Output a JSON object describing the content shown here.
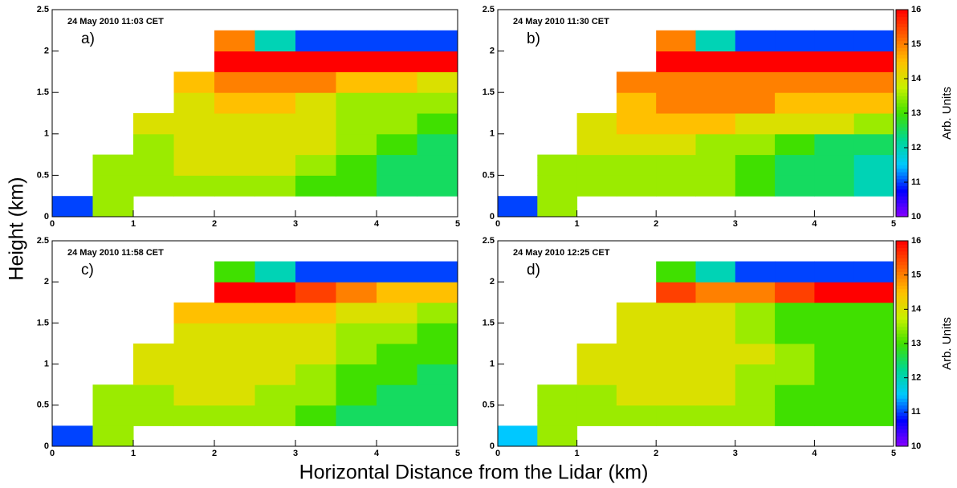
{
  "figure": {
    "ylabel": "Height (km)",
    "xlabel": "Horizontal Distance from the Lidar (km)",
    "colormap": [
      "#8a00ff",
      "#0000ff",
      "#00c8ff",
      "#00d890",
      "#40e000",
      "#c8f000",
      "#ffc000",
      "#ff6000",
      "#ff0000"
    ]
  },
  "chart_data": [
    {
      "type": "heatmap",
      "title": "24 May 2010 11:03 CET",
      "annotation": "a)",
      "xlim": [
        0,
        5
      ],
      "ylim": [
        0,
        2.5
      ],
      "xticks": [
        0,
        1,
        2,
        3,
        4,
        5
      ],
      "yticks": [
        0,
        0.5,
        1,
        1.5,
        2,
        2.5
      ],
      "zlim": [
        10,
        16
      ],
      "xbins": [
        0,
        0.5,
        1,
        1.5,
        2,
        2.5,
        3,
        3.5,
        4,
        4.5,
        5
      ],
      "ybins": [
        0,
        0.25,
        0.5,
        0.75,
        1,
        1.25,
        1.5,
        1.75,
        2,
        2.25,
        2.5
      ],
      "z": [
        [
          11,
          13.5,
          null,
          null,
          null,
          null,
          null,
          null,
          null,
          null
        ],
        [
          null,
          13.5,
          13.5,
          13.5,
          13.5,
          13.5,
          13,
          13,
          12.5,
          12.5
        ],
        [
          null,
          13.5,
          13.5,
          14,
          14,
          14,
          13.5,
          13,
          12.5,
          12.5
        ],
        [
          null,
          null,
          13.5,
          14,
          14,
          14,
          14,
          13.5,
          13,
          12.5
        ],
        [
          null,
          null,
          14,
          14,
          14,
          14,
          14,
          13.5,
          13.5,
          13
        ],
        [
          null,
          null,
          null,
          14,
          14.5,
          14.5,
          14,
          13.5,
          13.5,
          13.5
        ],
        [
          null,
          null,
          null,
          14.5,
          15,
          15,
          15,
          14.5,
          14.5,
          14
        ],
        [
          null,
          null,
          null,
          null,
          16,
          16,
          16,
          16,
          16,
          16
        ],
        [
          null,
          null,
          null,
          null,
          15,
          12,
          11,
          11,
          11,
          11
        ],
        [
          null,
          null,
          null,
          null,
          null,
          null,
          null,
          null,
          null,
          null
        ]
      ]
    },
    {
      "type": "heatmap",
      "title": "24 May 2010 11:30 CET",
      "annotation": "b)",
      "xlim": [
        0,
        5
      ],
      "ylim": [
        0,
        2.5
      ],
      "xticks": [
        0,
        1,
        2,
        3,
        4,
        5
      ],
      "yticks": [
        0,
        0.5,
        1,
        1.5,
        2,
        2.5
      ],
      "zlim": [
        10,
        16
      ],
      "colorbar": {
        "ticks": [
          10,
          11,
          12,
          13,
          14,
          15,
          16
        ],
        "label": "Arb. Units"
      },
      "xbins": [
        0,
        0.5,
        1,
        1.5,
        2,
        2.5,
        3,
        3.5,
        4,
        4.5,
        5
      ],
      "ybins": [
        0,
        0.25,
        0.5,
        0.75,
        1,
        1.25,
        1.5,
        1.75,
        2,
        2.25,
        2.5
      ],
      "z": [
        [
          11,
          13.5,
          null,
          null,
          null,
          null,
          null,
          null,
          null,
          null
        ],
        [
          null,
          13.5,
          13.5,
          13.5,
          13.5,
          13.5,
          13,
          12.5,
          12.5,
          12
        ],
        [
          null,
          13.5,
          13.5,
          13.5,
          13.5,
          13.5,
          13,
          12.5,
          12.5,
          12
        ],
        [
          null,
          null,
          14,
          14,
          14,
          13.5,
          13.5,
          13,
          12.5,
          12.5
        ],
        [
          null,
          null,
          14,
          14.5,
          14.5,
          14.5,
          14,
          14,
          14,
          13.5
        ],
        [
          null,
          null,
          null,
          14.5,
          15,
          15,
          15,
          14.5,
          14.5,
          14.5
        ],
        [
          null,
          null,
          null,
          15,
          15,
          15,
          15,
          15,
          15,
          15
        ],
        [
          null,
          null,
          null,
          null,
          16,
          16,
          16,
          16,
          16,
          16
        ],
        [
          null,
          null,
          null,
          null,
          15,
          12,
          11,
          11,
          11,
          11
        ],
        [
          null,
          null,
          null,
          null,
          null,
          null,
          null,
          null,
          null,
          null
        ]
      ]
    },
    {
      "type": "heatmap",
      "title": "24 May 2010 11:58 CET",
      "annotation": "c)",
      "xlim": [
        0,
        5
      ],
      "ylim": [
        0,
        2.5
      ],
      "xticks": [
        0,
        1,
        2,
        3,
        4,
        5
      ],
      "yticks": [
        0,
        0.5,
        1,
        1.5,
        2,
        2.5
      ],
      "zlim": [
        10,
        16
      ],
      "xbins": [
        0,
        0.5,
        1,
        1.5,
        2,
        2.5,
        3,
        3.5,
        4,
        4.5,
        5
      ],
      "ybins": [
        0,
        0.25,
        0.5,
        0.75,
        1,
        1.25,
        1.5,
        1.75,
        2,
        2.25,
        2.5
      ],
      "z": [
        [
          11,
          13.5,
          null,
          null,
          null,
          null,
          null,
          null,
          null,
          null
        ],
        [
          null,
          13.5,
          13.5,
          13.5,
          13.5,
          13.5,
          13,
          12.5,
          12.5,
          12.5
        ],
        [
          null,
          13.5,
          13.5,
          14,
          14,
          13.5,
          13.5,
          13,
          12.5,
          12.5
        ],
        [
          null,
          null,
          14,
          14,
          14,
          14,
          13.5,
          13,
          13,
          12.5
        ],
        [
          null,
          null,
          14,
          14,
          14,
          14,
          14,
          13.5,
          13,
          13
        ],
        [
          null,
          null,
          null,
          14,
          14,
          14,
          14,
          13.5,
          13.5,
          13
        ],
        [
          null,
          null,
          null,
          14.5,
          14.5,
          14.5,
          14.5,
          14,
          14,
          13.5
        ],
        [
          null,
          null,
          null,
          null,
          16,
          16,
          15.5,
          15,
          14.5,
          14.5
        ],
        [
          null,
          null,
          null,
          null,
          13,
          12,
          11,
          11,
          11,
          11
        ],
        [
          null,
          null,
          null,
          null,
          null,
          null,
          null,
          null,
          null,
          null
        ]
      ]
    },
    {
      "type": "heatmap",
      "title": "24 May 2010 12:25 CET",
      "annotation": "d)",
      "xlim": [
        0,
        5
      ],
      "ylim": [
        0,
        2.5
      ],
      "xticks": [
        0,
        1,
        2,
        3,
        4,
        5
      ],
      "yticks": [
        0,
        0.5,
        1,
        1.5,
        2,
        2.5
      ],
      "zlim": [
        10,
        16
      ],
      "colorbar": {
        "ticks": [
          10,
          11,
          12,
          13,
          14,
          15,
          16
        ],
        "label": "Arb. Units"
      },
      "xbins": [
        0,
        0.5,
        1,
        1.5,
        2,
        2.5,
        3,
        3.5,
        4,
        4.5,
        5
      ],
      "ybins": [
        0,
        0.25,
        0.5,
        0.75,
        1,
        1.25,
        1.5,
        1.75,
        2,
        2.25,
        2.5
      ],
      "z": [
        [
          11.5,
          13.5,
          null,
          null,
          null,
          null,
          null,
          null,
          null,
          null
        ],
        [
          null,
          13.5,
          13.5,
          13.5,
          13.5,
          13.5,
          13.5,
          13,
          13,
          13
        ],
        [
          null,
          13.5,
          13.5,
          14,
          14,
          14,
          13.5,
          13,
          13,
          13
        ],
        [
          null,
          null,
          14,
          14,
          14,
          14,
          13.5,
          13.5,
          13,
          13
        ],
        [
          null,
          null,
          14,
          14,
          14,
          14,
          14,
          13.5,
          13,
          13
        ],
        [
          null,
          null,
          null,
          14,
          14,
          14,
          13.5,
          13,
          13,
          13
        ],
        [
          null,
          null,
          null,
          14,
          14,
          14,
          13.5,
          13,
          13,
          13
        ],
        [
          null,
          null,
          null,
          null,
          15.5,
          15,
          15,
          15.5,
          16,
          16
        ],
        [
          null,
          null,
          null,
          null,
          13,
          12,
          11,
          11,
          11,
          11
        ],
        [
          null,
          null,
          null,
          null,
          null,
          null,
          null,
          null,
          null,
          null
        ]
      ]
    }
  ]
}
